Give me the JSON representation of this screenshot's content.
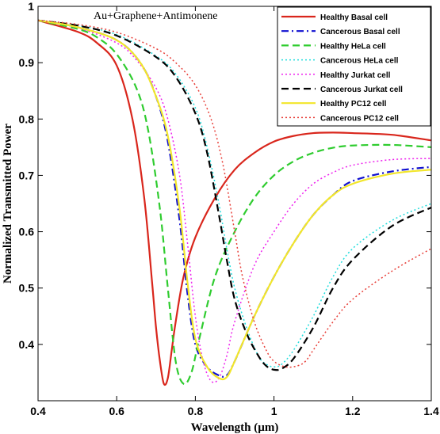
{
  "chart_data": {
    "type": "line",
    "xlabel": "Wavelength (µm)",
    "ylabel": "Normalized Transmitted Power",
    "annotation": "Au+Graphene+Antimonene",
    "xlim": [
      0.4,
      1.4
    ],
    "ylim": [
      0.3,
      1.0
    ],
    "x_ticks": [
      0.4,
      0.6,
      0.8,
      1.0,
      1.2,
      1.4
    ],
    "x_tick_labels": [
      "0.4",
      "0.6",
      "0.8",
      "1",
      "1.2",
      "1.4"
    ],
    "y_ticks": [
      0.4,
      0.5,
      0.6,
      0.7,
      0.8,
      0.9,
      1.0
    ],
    "y_tick_labels": [
      "0.4",
      "0.5",
      "0.6",
      "0.7",
      "0.8",
      "0.9",
      "1"
    ],
    "grid": false,
    "legend_position": "top-right",
    "series": [
      {
        "name": "Healthy Basal cell",
        "color": "#d9261c",
        "dash": "solid",
        "x": [
          0.4,
          0.5,
          0.55,
          0.6,
          0.64,
          0.67,
          0.69,
          0.7,
          0.71,
          0.72,
          0.73,
          0.74,
          0.75,
          0.77,
          0.8,
          0.85,
          0.9,
          0.95,
          1.0,
          1.05,
          1.1,
          1.15,
          1.2,
          1.3,
          1.4
        ],
        "y": [
          0.975,
          0.955,
          0.935,
          0.895,
          0.8,
          0.66,
          0.51,
          0.43,
          0.37,
          0.33,
          0.34,
          0.39,
          0.44,
          0.52,
          0.59,
          0.66,
          0.71,
          0.74,
          0.76,
          0.77,
          0.775,
          0.776,
          0.775,
          0.772,
          0.762
        ]
      },
      {
        "name": "Cancerous Basal cell",
        "color": "#1010d0",
        "dash": "dashdot",
        "x": [
          0.4,
          0.5,
          0.6,
          0.66,
          0.7,
          0.73,
          0.76,
          0.78,
          0.8,
          0.83,
          0.86,
          0.88,
          0.9,
          0.95,
          1.0,
          1.05,
          1.1,
          1.15,
          1.2,
          1.3,
          1.4
        ],
        "y": [
          0.975,
          0.963,
          0.94,
          0.9,
          0.84,
          0.76,
          0.62,
          0.49,
          0.4,
          0.36,
          0.345,
          0.345,
          0.37,
          0.45,
          0.52,
          0.58,
          0.63,
          0.665,
          0.69,
          0.707,
          0.715
        ]
      },
      {
        "name": "Healthy HeLa cell",
        "color": "#2fcc2f",
        "dash": "dash",
        "x": [
          0.4,
          0.5,
          0.55,
          0.6,
          0.65,
          0.68,
          0.71,
          0.73,
          0.75,
          0.77,
          0.79,
          0.81,
          0.85,
          0.9,
          0.95,
          1.0,
          1.05,
          1.1,
          1.15,
          1.2,
          1.3,
          1.4
        ],
        "y": [
          0.975,
          0.96,
          0.945,
          0.915,
          0.855,
          0.78,
          0.64,
          0.5,
          0.37,
          0.33,
          0.35,
          0.41,
          0.52,
          0.6,
          0.66,
          0.7,
          0.725,
          0.74,
          0.749,
          0.753,
          0.754,
          0.75
        ]
      },
      {
        "name": "Cancerous HeLa cell",
        "color": "#22dddd",
        "dash": "dot",
        "x": [
          0.4,
          0.5,
          0.6,
          0.7,
          0.75,
          0.8,
          0.83,
          0.86,
          0.88,
          0.9,
          0.93,
          0.96,
          0.98,
          1.0,
          1.02,
          1.05,
          1.1,
          1.15,
          1.2,
          1.3,
          1.4
        ],
        "y": [
          0.975,
          0.966,
          0.95,
          0.912,
          0.88,
          0.82,
          0.75,
          0.65,
          0.57,
          0.5,
          0.43,
          0.38,
          0.365,
          0.36,
          0.365,
          0.39,
          0.45,
          0.52,
          0.57,
          0.62,
          0.65
        ]
      },
      {
        "name": "Healthy Jurkat cell",
        "color": "#ee22ee",
        "dash": "dot",
        "x": [
          0.4,
          0.5,
          0.6,
          0.65,
          0.7,
          0.73,
          0.76,
          0.78,
          0.8,
          0.82,
          0.84,
          0.86,
          0.88,
          0.9,
          0.95,
          1.0,
          1.05,
          1.1,
          1.15,
          1.2,
          1.3,
          1.4
        ],
        "y": [
          0.975,
          0.962,
          0.935,
          0.905,
          0.855,
          0.8,
          0.7,
          0.58,
          0.45,
          0.37,
          0.335,
          0.34,
          0.38,
          0.44,
          0.54,
          0.6,
          0.65,
          0.685,
          0.705,
          0.718,
          0.728,
          0.73
        ]
      },
      {
        "name": "Cancerous Jurkat cell",
        "color": "#000000",
        "dash": "dash",
        "x": [
          0.4,
          0.5,
          0.6,
          0.7,
          0.75,
          0.8,
          0.83,
          0.86,
          0.88,
          0.9,
          0.93,
          0.96,
          0.98,
          1.0,
          1.02,
          1.05,
          1.1,
          1.15,
          1.2,
          1.3,
          1.4
        ],
        "y": [
          0.975,
          0.966,
          0.948,
          0.91,
          0.875,
          0.81,
          0.74,
          0.63,
          0.55,
          0.48,
          0.42,
          0.38,
          0.362,
          0.355,
          0.357,
          0.375,
          0.43,
          0.5,
          0.55,
          0.61,
          0.643
        ]
      },
      {
        "name": "Healthy PC12 cell",
        "color": "#f2e62a",
        "dash": "solid",
        "x": [
          0.4,
          0.5,
          0.6,
          0.66,
          0.7,
          0.73,
          0.76,
          0.78,
          0.8,
          0.83,
          0.86,
          0.88,
          0.9,
          0.95,
          1.0,
          1.05,
          1.1,
          1.15,
          1.2,
          1.3,
          1.4
        ],
        "y": [
          0.975,
          0.963,
          0.94,
          0.9,
          0.84,
          0.77,
          0.64,
          0.51,
          0.41,
          0.36,
          0.34,
          0.342,
          0.37,
          0.45,
          0.52,
          0.58,
          0.63,
          0.665,
          0.685,
          0.703,
          0.71
        ]
      },
      {
        "name": "Cancerous PC12 cell",
        "color": "#e8403a",
        "dash": "dot",
        "x": [
          0.4,
          0.5,
          0.6,
          0.7,
          0.75,
          0.8,
          0.84,
          0.87,
          0.9,
          0.92,
          0.95,
          0.98,
          1.0,
          1.03,
          1.06,
          1.08,
          1.1,
          1.15,
          1.2,
          1.3,
          1.4
        ],
        "y": [
          0.975,
          0.968,
          0.954,
          0.925,
          0.9,
          0.86,
          0.8,
          0.72,
          0.6,
          0.52,
          0.44,
          0.39,
          0.37,
          0.36,
          0.362,
          0.37,
          0.39,
          0.44,
          0.48,
          0.53,
          0.57
        ]
      }
    ]
  }
}
